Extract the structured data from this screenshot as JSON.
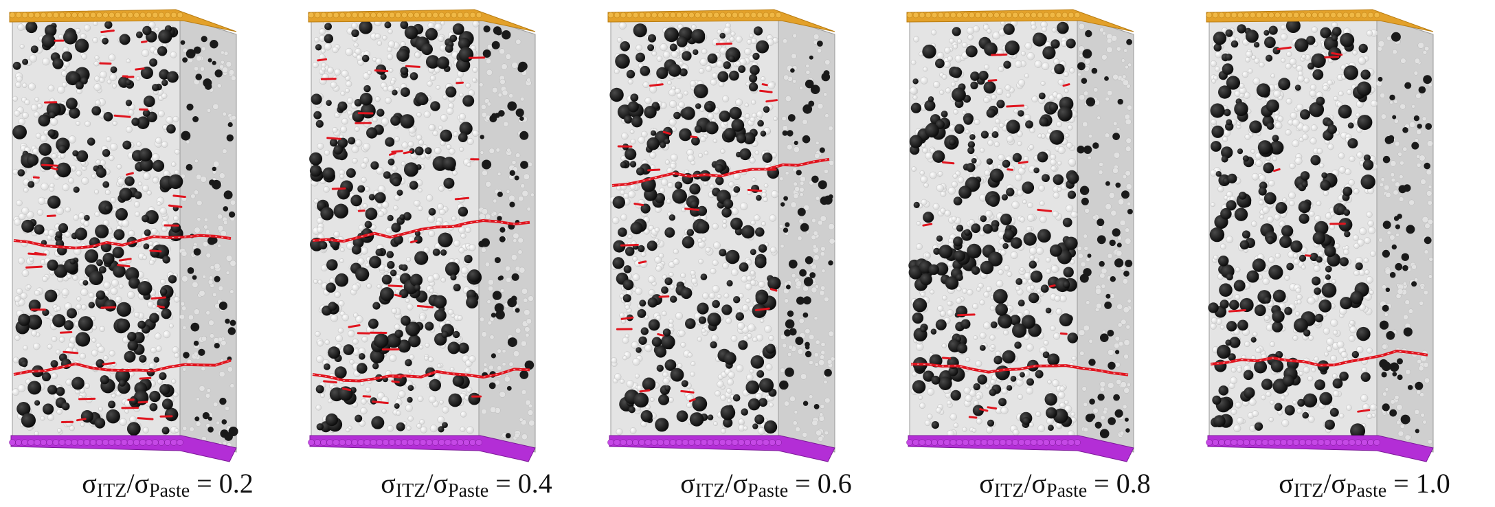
{
  "panels": [
    {
      "id": "p1",
      "label": {
        "sigma": "σ",
        "sub1": "ITZ",
        "slash": "/",
        "sigma2": "σ",
        "sub2": "Paste",
        "eq": " = ",
        "value": "0.2"
      },
      "ratio": 0.2,
      "seed": 11
    },
    {
      "id": "p2",
      "label": {
        "sigma": "σ",
        "sub1": "ITZ",
        "slash": "/",
        "sigma2": "σ",
        "sub2": "Paste",
        "eq": " = ",
        "value": "0.4"
      },
      "ratio": 0.4,
      "seed": 23
    },
    {
      "id": "p3",
      "label": {
        "sigma": "σ",
        "sub1": "ITZ",
        "slash": "/",
        "sigma2": "σ",
        "sub2": "Paste",
        "eq": " = ",
        "value": "0.6"
      },
      "ratio": 0.6,
      "seed": 37
    },
    {
      "id": "p4",
      "label": {
        "sigma": "σ",
        "sub1": "ITZ",
        "slash": "/",
        "sigma2": "σ",
        "sub2": "Paste",
        "eq": " = ",
        "value": "0.8"
      },
      "ratio": 0.8,
      "seed": 41
    },
    {
      "id": "p5",
      "label": {
        "sigma": "σ",
        "sub1": "ITZ",
        "slash": "/",
        "sigma2": "σ",
        "sub2": "Paste",
        "eq": " = ",
        "value": "1.0"
      },
      "ratio": 1.0,
      "seed": 53
    }
  ],
  "colors": {
    "top_plate": "#e3a12a",
    "bottom_plate": "#b32ed6",
    "paste": "#d7d7d7",
    "aggregate": "#0c0c0c",
    "crack": "#e0141e"
  }
}
